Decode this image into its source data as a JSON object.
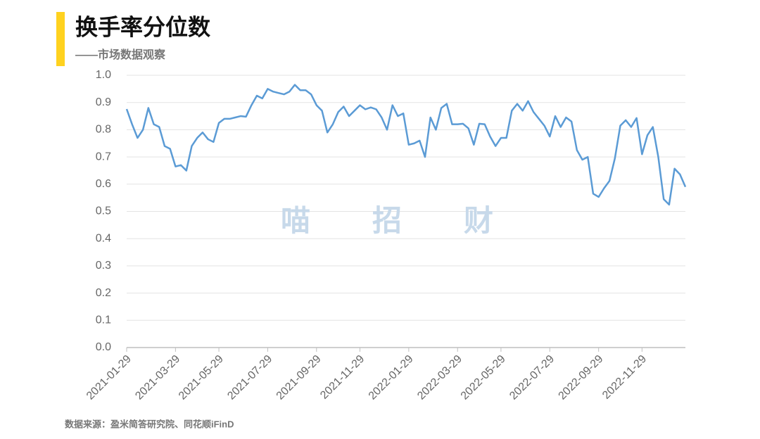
{
  "chart_data": {
    "type": "line",
    "title": "换手率分位数",
    "subtitle": "——市场数据观察",
    "source": "数据来源：盈米简答研究院、同花顺iFinD",
    "watermark": [
      "喵",
      "招",
      "财"
    ],
    "categories": [
      "2021-01-29",
      null,
      null,
      null,
      null,
      null,
      null,
      null,
      null,
      "2021-03-29",
      null,
      null,
      null,
      null,
      null,
      null,
      null,
      "2021-05-29",
      null,
      null,
      null,
      null,
      null,
      null,
      null,
      null,
      "2021-07-29",
      null,
      null,
      null,
      null,
      null,
      null,
      null,
      null,
      "2021-09-29",
      null,
      null,
      null,
      null,
      null,
      null,
      null,
      "2021-11-29",
      null,
      null,
      null,
      null,
      null,
      null,
      null,
      null,
      "2022-01-29",
      null,
      null,
      null,
      null,
      null,
      null,
      null,
      null,
      "2022-03-29",
      null,
      null,
      null,
      null,
      null,
      null,
      null,
      "2022-05-29",
      null,
      null,
      null,
      null,
      null,
      null,
      null,
      null,
      "2022-07-29",
      null,
      null,
      null,
      null,
      null,
      null,
      null,
      null,
      "2022-09-29",
      null,
      null,
      null,
      null,
      null,
      null,
      null,
      "2022-11-29",
      null,
      null,
      null,
      null,
      null,
      null,
      null,
      null
    ],
    "series": [
      {
        "color": "#5b9bd5",
        "values": [
          0.876,
          0.82,
          0.77,
          0.8,
          0.88,
          0.82,
          0.81,
          0.74,
          0.73,
          0.665,
          0.67,
          0.65,
          0.74,
          0.77,
          0.79,
          0.765,
          0.755,
          0.825,
          0.84,
          0.84,
          0.845,
          0.85,
          0.848,
          0.89,
          0.925,
          0.915,
          0.95,
          0.94,
          0.935,
          0.93,
          0.94,
          0.965,
          0.945,
          0.945,
          0.93,
          0.89,
          0.87,
          0.79,
          0.82,
          0.865,
          0.885,
          0.85,
          0.87,
          0.89,
          0.875,
          0.882,
          0.875,
          0.845,
          0.8,
          0.89,
          0.85,
          0.86,
          0.745,
          0.75,
          0.76,
          0.7,
          0.845,
          0.8,
          0.88,
          0.895,
          0.82,
          0.82,
          0.822,
          0.805,
          0.745,
          0.822,
          0.82,
          0.775,
          0.74,
          0.77,
          0.77,
          0.87,
          0.895,
          0.87,
          0.905,
          0.865,
          0.84,
          0.815,
          0.775,
          0.85,
          0.81,
          0.845,
          0.83,
          0.725,
          0.69,
          0.7,
          0.565,
          0.553,
          0.585,
          0.612,
          0.695,
          0.815,
          0.835,
          0.81,
          0.843,
          0.71,
          0.78,
          0.81,
          0.7,
          0.545,
          0.525,
          0.657,
          0.636,
          0.59
        ]
      }
    ],
    "ylim": [
      0,
      1
    ],
    "yticks": [
      {
        "value": 0,
        "label": "0.0"
      },
      0.1,
      0.2,
      0.3,
      0.4,
      0.5,
      0.6,
      0.7,
      0.8,
      0.9,
      {
        "value": 1,
        "label": "1.0"
      }
    ],
    "grid": true
  }
}
